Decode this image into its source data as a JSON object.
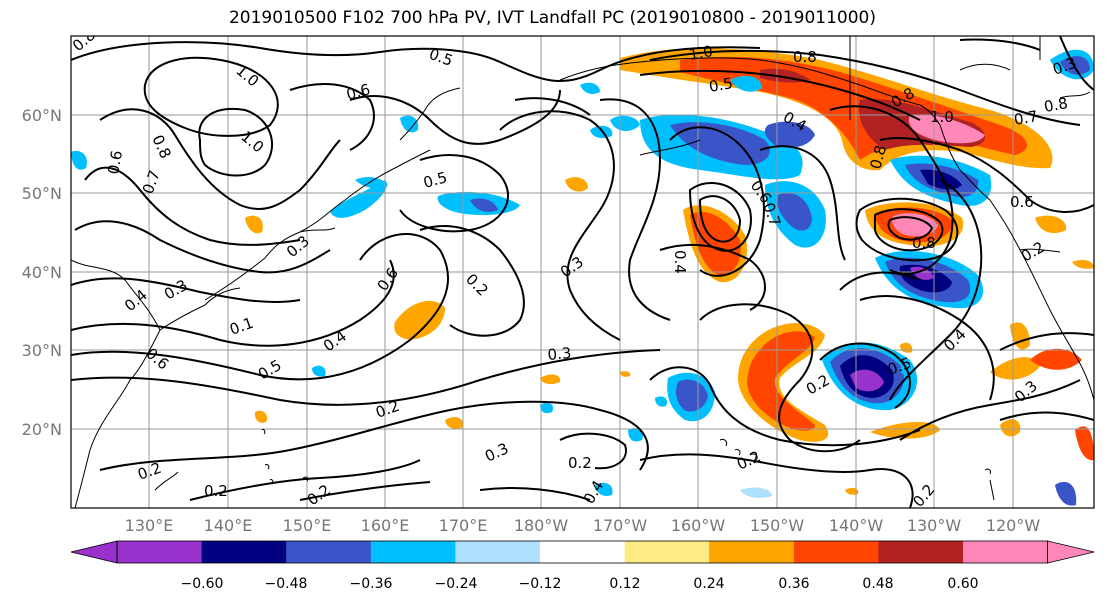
{
  "title": "2019010500 F102 700 hPa PV, IVT Landfall PC (2019010800 - 2019011000)",
  "map": {
    "lon_labels": [
      "130°E",
      "140°E",
      "150°E",
      "160°E",
      "170°E",
      "180°W",
      "170°W",
      "160°W",
      "150°W",
      "140°W",
      "130°W",
      "120°W"
    ],
    "lat_labels": [
      "60°N",
      "50°N",
      "40°N",
      "30°N",
      "20°N"
    ],
    "gridlines": true,
    "contour_labels": [
      "0.8",
      "1.0",
      "0.5",
      "0.6",
      "0.8",
      "0.6",
      "1.0",
      "0.7",
      "0.5",
      "0.3",
      "0.4",
      "0.3",
      "0.6",
      "0.1",
      "0.6",
      "0.5",
      "0.4",
      "0.2",
      "0.3",
      "0.2",
      "0.2",
      "0.3",
      "0.2",
      "0.2",
      "0.2",
      "0.2",
      "0.3",
      "1.0",
      "0.8",
      "0.5",
      "0.4",
      "0.6",
      "0.7",
      "0.4",
      "0.8",
      "1.0",
      "0.8",
      "0.6",
      "0.8",
      "0.8",
      "0.7",
      "0.2",
      "0.5",
      "0.4",
      "0.3",
      "0.3",
      "0.2",
      "0.2",
      "0.4"
    ]
  },
  "colorbar": {
    "ticks": [
      "−0.60",
      "−0.48",
      "−0.36",
      "−0.24",
      "−0.12",
      "0.12",
      "0.24",
      "0.36",
      "0.48",
      "0.60"
    ],
    "colors": [
      "#9932cc",
      "#000080",
      "#3a55c8",
      "#00bfff",
      "#b0e0ff",
      "#ffffff",
      "#ffeb84",
      "#ffa500",
      "#ff4500",
      "#b22222",
      "#ff88b8"
    ]
  }
}
